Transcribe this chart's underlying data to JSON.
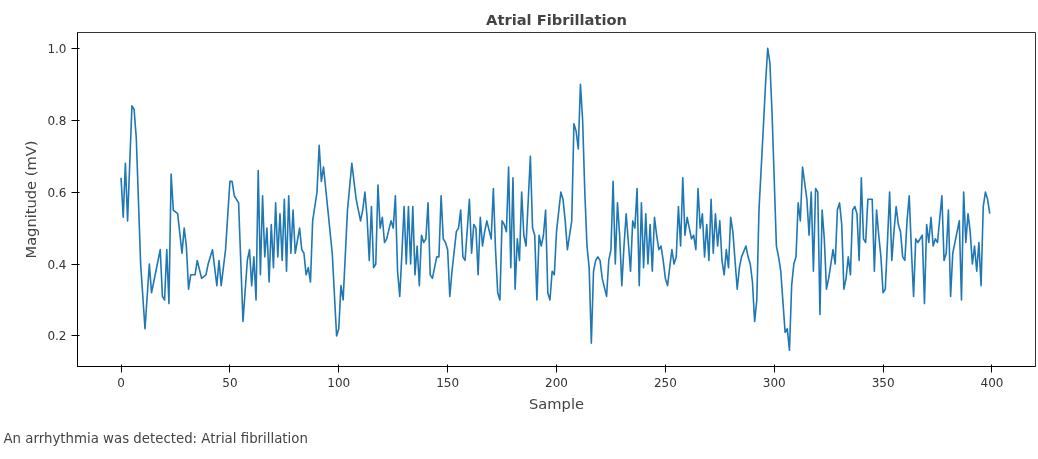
{
  "chart_data": {
    "type": "line",
    "title": "Atrial Fibrillation",
    "xlabel": "Sample",
    "ylabel": "Magnitude (mV)",
    "annotations": [
      "An arrhythmia was detected: Atrial fibrillation"
    ],
    "xlim": [
      -20,
      420
    ],
    "ylim": [
      0.115,
      1.044
    ],
    "xticks": [
      0,
      50,
      100,
      150,
      200,
      250,
      300,
      350,
      400
    ],
    "yticks": [
      {
        "value": 0.2,
        "label": "0.2"
      },
      {
        "value": 0.4,
        "label": "0.4"
      },
      {
        "value": 0.6,
        "label": "0.6"
      },
      {
        "value": 0.8,
        "label": "0.8"
      },
      {
        "value": 1.0,
        "label": "1.0"
      }
    ],
    "line_style": "solid",
    "series": [
      {
        "color": "#1f77b4",
        "x": [
          0,
          1,
          2,
          3,
          5,
          6,
          7,
          9,
          11,
          13,
          14,
          16,
          18,
          19,
          20,
          21,
          22,
          23,
          24,
          26,
          28,
          29,
          30,
          31,
          32,
          34,
          35,
          37,
          39,
          40,
          42,
          44,
          45,
          46,
          48,
          50,
          51,
          52,
          54,
          56,
          58,
          59,
          60,
          61,
          62,
          63,
          64,
          65,
          66,
          67,
          68,
          69,
          70,
          71,
          72,
          73,
          74,
          75,
          76,
          77,
          78,
          79,
          80,
          82,
          83,
          84,
          85,
          86,
          87,
          88,
          90,
          91,
          92,
          93,
          95,
          97,
          99,
          100,
          101,
          102,
          104,
          106,
          108,
          110,
          111,
          112,
          113,
          114,
          115,
          116,
          117,
          118,
          119,
          120,
          121,
          122,
          124,
          125,
          126,
          127,
          128,
          129,
          130,
          131,
          132,
          133,
          134,
          135,
          136,
          137,
          138,
          139,
          140,
          141,
          142,
          143,
          145,
          146,
          147,
          148,
          149,
          150,
          151,
          152,
          154,
          155,
          156,
          157,
          158,
          160,
          161,
          162,
          163,
          164,
          165,
          166,
          167,
          168,
          170,
          171,
          172,
          173,
          174,
          175,
          176,
          177,
          178,
          179,
          180,
          181,
          182,
          183,
          184,
          185,
          186,
          188,
          189,
          190,
          191,
          192,
          193,
          194,
          195,
          196,
          197,
          198,
          199,
          200,
          202,
          203,
          204,
          205,
          207,
          208,
          209,
          210,
          211,
          212,
          213,
          214,
          215,
          216,
          217,
          218,
          219,
          220,
          221,
          223,
          224,
          225,
          226,
          227,
          228,
          229,
          230,
          231,
          232,
          233,
          234,
          235,
          236,
          237,
          238,
          239,
          240,
          241,
          242,
          243,
          244,
          245,
          246,
          247,
          248,
          249,
          250,
          251,
          253,
          254,
          255,
          256,
          257,
          258,
          259,
          260,
          261,
          262,
          263,
          264,
          265,
          266,
          267,
          268,
          269,
          270,
          271,
          272,
          273,
          274,
          275,
          276,
          277,
          278,
          279,
          280,
          281,
          282,
          283,
          284,
          285,
          287,
          288,
          289,
          290,
          291,
          292,
          293,
          295,
          296,
          297,
          298,
          299,
          301,
          302,
          303,
          305,
          306,
          307,
          308,
          309,
          310,
          311,
          312,
          313,
          315,
          316,
          317,
          318,
          319,
          320,
          321,
          322,
          323,
          324,
          325,
          326,
          327,
          328,
          329,
          330,
          331,
          332,
          333,
          334,
          335,
          336,
          337,
          338,
          339,
          340,
          341,
          342,
          343,
          344,
          345,
          346,
          347,
          348,
          349,
          350,
          351,
          352,
          353,
          354,
          355,
          356,
          357,
          358,
          359,
          360,
          361,
          362,
          363,
          364,
          365,
          366,
          368,
          369,
          370,
          371,
          372,
          373,
          374,
          375,
          377,
          378,
          379,
          380,
          381,
          382,
          384,
          385,
          386,
          387,
          388,
          389,
          390,
          391,
          392,
          393,
          394,
          395,
          396,
          397,
          398,
          399
        ],
        "values": [
          0.64,
          0.53,
          0.68,
          0.52,
          0.84,
          0.83,
          0.75,
          0.4,
          0.22,
          0.4,
          0.32,
          0.38,
          0.44,
          0.31,
          0.3,
          0.44,
          0.29,
          0.65,
          0.55,
          0.54,
          0.43,
          0.5,
          0.45,
          0.33,
          0.37,
          0.37,
          0.41,
          0.36,
          0.37,
          0.4,
          0.44,
          0.34,
          0.41,
          0.34,
          0.44,
          0.63,
          0.63,
          0.59,
          0.57,
          0.24,
          0.41,
          0.44,
          0.34,
          0.42,
          0.3,
          0.66,
          0.37,
          0.59,
          0.42,
          0.5,
          0.35,
          0.51,
          0.39,
          0.57,
          0.42,
          0.54,
          0.41,
          0.58,
          0.38,
          0.59,
          0.43,
          0.55,
          0.43,
          0.5,
          0.44,
          0.43,
          0.37,
          0.39,
          0.35,
          0.52,
          0.6,
          0.73,
          0.63,
          0.67,
          0.55,
          0.43,
          0.2,
          0.22,
          0.34,
          0.3,
          0.55,
          0.68,
          0.58,
          0.52,
          0.55,
          0.6,
          0.53,
          0.41,
          0.56,
          0.39,
          0.4,
          0.62,
          0.5,
          0.53,
          0.46,
          0.47,
          0.52,
          0.5,
          0.59,
          0.38,
          0.31,
          0.43,
          0.56,
          0.4,
          0.56,
          0.4,
          0.56,
          0.37,
          0.45,
          0.34,
          0.48,
          0.46,
          0.47,
          0.57,
          0.37,
          0.36,
          0.42,
          0.42,
          0.59,
          0.47,
          0.46,
          0.44,
          0.31,
          0.38,
          0.49,
          0.5,
          0.55,
          0.42,
          0.41,
          0.58,
          0.43,
          0.51,
          0.5,
          0.37,
          0.53,
          0.45,
          0.49,
          0.52,
          0.47,
          0.61,
          0.44,
          0.32,
          0.3,
          0.52,
          0.51,
          0.49,
          0.67,
          0.39,
          0.64,
          0.33,
          0.47,
          0.41,
          0.6,
          0.48,
          0.45,
          0.7,
          0.5,
          0.48,
          0.3,
          0.48,
          0.45,
          0.48,
          0.55,
          0.32,
          0.3,
          0.38,
          0.37,
          0.49,
          0.6,
          0.58,
          0.52,
          0.44,
          0.52,
          0.79,
          0.77,
          0.72,
          0.9,
          0.8,
          0.6,
          0.45,
          0.39,
          0.18,
          0.38,
          0.41,
          0.42,
          0.41,
          0.36,
          0.31,
          0.41,
          0.44,
          0.63,
          0.4,
          0.57,
          0.48,
          0.34,
          0.45,
          0.54,
          0.46,
          0.38,
          0.52,
          0.5,
          0.61,
          0.34,
          0.57,
          0.39,
          0.54,
          0.4,
          0.51,
          0.38,
          0.53,
          0.48,
          0.44,
          0.45,
          0.41,
          0.36,
          0.34,
          0.44,
          0.4,
          0.42,
          0.56,
          0.45,
          0.64,
          0.48,
          0.53,
          0.5,
          0.47,
          0.48,
          0.44,
          0.61,
          0.5,
          0.54,
          0.42,
          0.51,
          0.41,
          0.58,
          0.43,
          0.54,
          0.45,
          0.52,
          0.41,
          0.37,
          0.44,
          0.39,
          0.53,
          0.49,
          0.41,
          0.33,
          0.39,
          0.42,
          0.45,
          0.42,
          0.4,
          0.35,
          0.24,
          0.3,
          0.55,
          0.78,
          0.9,
          1.0,
          0.96,
          0.82,
          0.45,
          0.42,
          0.38,
          0.21,
          0.22,
          0.16,
          0.34,
          0.4,
          0.42,
          0.57,
          0.52,
          0.67,
          0.58,
          0.48,
          0.6,
          0.38,
          0.61,
          0.6,
          0.26,
          0.55,
          0.47,
          0.33,
          0.36,
          0.4,
          0.44,
          0.4,
          0.55,
          0.57,
          0.51,
          0.33,
          0.36,
          0.42,
          0.37,
          0.55,
          0.56,
          0.54,
          0.41,
          0.64,
          0.47,
          0.46,
          0.58,
          0.58,
          0.58,
          0.38,
          0.55,
          0.48,
          0.42,
          0.32,
          0.33,
          0.46,
          0.6,
          0.41,
          0.49,
          0.56,
          0.51,
          0.49,
          0.42,
          0.41,
          0.52,
          0.59,
          0.44,
          0.31,
          0.47,
          0.46,
          0.48,
          0.29,
          0.51,
          0.46,
          0.53,
          0.45,
          0.47,
          0.46,
          0.59,
          0.41,
          0.43,
          0.55,
          0.31,
          0.43,
          0.49,
          0.52,
          0.3,
          0.6,
          0.46,
          0.54,
          0.49,
          0.4,
          0.45,
          0.38,
          0.46,
          0.34,
          0.56,
          0.6,
          0.58,
          0.54
        ]
      }
    ]
  }
}
